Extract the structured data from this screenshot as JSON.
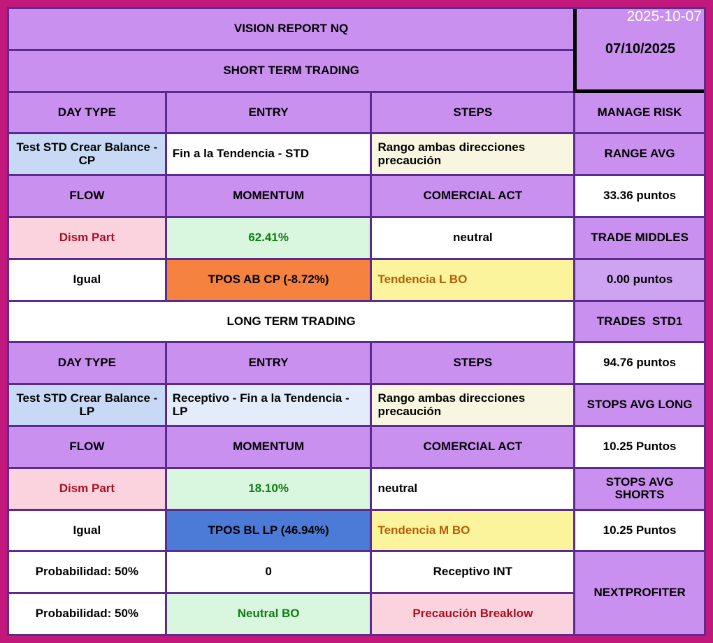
{
  "timestamp_overlay": "2025-10-07",
  "palette": {
    "frame": "#C2187C",
    "grid_line": "#5B2B8F",
    "header_purple": "#CA90F0",
    "value_purple": "#CDA3F2",
    "light_blue": "#C7D9F5",
    "pale_blue": "#E3ECFB",
    "cream": "#F8F6E0",
    "pink": "#FBD3DE",
    "light_green": "#D9F6DF",
    "orange": "#F5823E",
    "yellow": "#FBF49C",
    "blue": "#4B7BD6",
    "white": "#FFFFFF",
    "black": "#000000",
    "dark_red": "#AB0E1E",
    "green": "#0F7D14",
    "brown": "#B35E08"
  },
  "grid": {
    "columns": 4,
    "rows": 15
  },
  "cells": [
    {
      "name": "report-title",
      "text": "VISION REPORT NQ",
      "col": 1,
      "row": 1,
      "colspan": 3,
      "bg": "header_purple"
    },
    {
      "name": "date-cell",
      "text": "07/10/2025",
      "col": 4,
      "row": 1,
      "rowspan": 2,
      "bg": "header_purple",
      "blackEdge": true
    },
    {
      "name": "section-short-term",
      "text": "SHORT TERM TRADING",
      "col": 1,
      "row": 2,
      "colspan": 3,
      "bg": "header_purple"
    },
    {
      "name": "day-type-header-st",
      "text": "DAY TYPE",
      "col": 1,
      "row": 3,
      "bg": "header_purple"
    },
    {
      "name": "entry-header-st",
      "text": "ENTRY",
      "col": 2,
      "row": 3,
      "bg": "header_purple"
    },
    {
      "name": "steps-header-st",
      "text": "STEPS",
      "col": 3,
      "row": 3,
      "bg": "header_purple"
    },
    {
      "name": "manage-risk-header",
      "text": "MANAGE RISK",
      "col": 4,
      "row": 3,
      "bg": "header_purple"
    },
    {
      "name": "day-type-value-st",
      "text": "Test STD Crear Balance - CP",
      "col": 1,
      "row": 4,
      "bg": "light_blue"
    },
    {
      "name": "entry-value-st",
      "text": "Fin a la Tendencia - STD",
      "col": 2,
      "row": 4,
      "bg": "white",
      "align": "left"
    },
    {
      "name": "steps-value-st",
      "text": "Rango ambas direcciones precaución",
      "col": 3,
      "row": 4,
      "bg": "cream",
      "align": "left"
    },
    {
      "name": "range-avg-header",
      "text": "RANGE AVG",
      "col": 4,
      "row": 4,
      "bg": "header_purple"
    },
    {
      "name": "flow-header-st",
      "text": "FLOW",
      "col": 1,
      "row": 5,
      "bg": "header_purple"
    },
    {
      "name": "momentum-header-st",
      "text": "MOMENTUM",
      "col": 2,
      "row": 5,
      "bg": "header_purple"
    },
    {
      "name": "comercial-act-header-st",
      "text": "COMERCIAL ACT",
      "col": 3,
      "row": 5,
      "bg": "header_purple"
    },
    {
      "name": "range-avg-value",
      "text": "33.36 puntos",
      "col": 4,
      "row": 5,
      "bg": "white"
    },
    {
      "name": "flow-value-st",
      "text": "Dism Part",
      "col": 1,
      "row": 6,
      "bg": "pink",
      "fg": "dark_red"
    },
    {
      "name": "momentum-value-st",
      "text": "62.41%",
      "col": 2,
      "row": 6,
      "bg": "light_green",
      "fg": "green"
    },
    {
      "name": "comercial-act-value-st",
      "text": "neutral",
      "col": 3,
      "row": 6,
      "bg": "white"
    },
    {
      "name": "trade-middles-header",
      "text": "TRADE MIDDLES",
      "col": 4,
      "row": 6,
      "bg": "header_purple"
    },
    {
      "name": "flow-state-st",
      "text": "Igual",
      "col": 1,
      "row": 7,
      "bg": "white"
    },
    {
      "name": "tpos-value-st",
      "text": "TPOS AB CP (-8.72%)",
      "col": 2,
      "row": 7,
      "bg": "orange"
    },
    {
      "name": "tendencia-value-st",
      "text": "Tendencia L BO",
      "col": 3,
      "row": 7,
      "bg": "yellow",
      "fg": "brown",
      "align": "left"
    },
    {
      "name": "trade-middles-value",
      "text": "0.00 puntos",
      "col": 4,
      "row": 7,
      "bg": "value_purple"
    },
    {
      "name": "section-long-term",
      "text": "LONG TERM TRADING",
      "col": 1,
      "row": 8,
      "colspan": 3,
      "bg": "white"
    },
    {
      "name": "trades-std1-header",
      "text": "TRADES  STD1",
      "col": 4,
      "row": 8,
      "bg": "header_purple"
    },
    {
      "name": "day-type-header-lt",
      "text": "DAY TYPE",
      "col": 1,
      "row": 9,
      "bg": "header_purple"
    },
    {
      "name": "entry-header-lt",
      "text": "ENTRY",
      "col": 2,
      "row": 9,
      "bg": "header_purple"
    },
    {
      "name": "steps-header-lt",
      "text": "STEPS",
      "col": 3,
      "row": 9,
      "bg": "header_purple"
    },
    {
      "name": "trades-std1-value",
      "text": "94.76 puntos",
      "col": 4,
      "row": 9,
      "bg": "white"
    },
    {
      "name": "day-type-value-lt",
      "text": "Test STD Crear Balance - LP",
      "col": 1,
      "row": 10,
      "bg": "light_blue"
    },
    {
      "name": "entry-value-lt",
      "text": "Receptivo - Fin a la Tendencia - LP",
      "col": 2,
      "row": 10,
      "bg": "pale_blue",
      "align": "left"
    },
    {
      "name": "steps-value-lt",
      "text": "Rango ambas direcciones precaución",
      "col": 3,
      "row": 10,
      "bg": "cream",
      "align": "left"
    },
    {
      "name": "stops-avg-long-header",
      "text": "STOPS AVG LONG",
      "col": 4,
      "row": 10,
      "bg": "header_purple"
    },
    {
      "name": "flow-header-lt",
      "text": "FLOW",
      "col": 1,
      "row": 11,
      "bg": "header_purple"
    },
    {
      "name": "momentum-header-lt",
      "text": "MOMENTUM",
      "col": 2,
      "row": 11,
      "bg": "header_purple"
    },
    {
      "name": "comercial-act-header-lt",
      "text": "COMERCIAL ACT",
      "col": 3,
      "row": 11,
      "bg": "header_purple"
    },
    {
      "name": "stops-avg-long-value",
      "text": "10.25 Puntos",
      "col": 4,
      "row": 11,
      "bg": "white"
    },
    {
      "name": "flow-value-lt",
      "text": "Dism Part",
      "col": 1,
      "row": 12,
      "bg": "pink",
      "fg": "dark_red"
    },
    {
      "name": "momentum-value-lt",
      "text": "18.10%",
      "col": 2,
      "row": 12,
      "bg": "light_green",
      "fg": "green"
    },
    {
      "name": "comercial-act-value-lt",
      "text": "neutral",
      "col": 3,
      "row": 12,
      "bg": "white",
      "align": "left"
    },
    {
      "name": "stops-avg-shorts-header",
      "text": "STOPS AVG SHORTS",
      "col": 4,
      "row": 12,
      "bg": "header_purple"
    },
    {
      "name": "flow-state-lt",
      "text": "Igual",
      "col": 1,
      "row": 13,
      "bg": "white"
    },
    {
      "name": "tpos-value-lt",
      "text": "TPOS BL LP (46.94%)",
      "col": 2,
      "row": 13,
      "bg": "blue"
    },
    {
      "name": "tendencia-value-lt",
      "text": "Tendencia M BO",
      "col": 3,
      "row": 13,
      "bg": "yellow",
      "fg": "brown",
      "align": "left"
    },
    {
      "name": "stops-avg-shorts-value",
      "text": "10.25 Puntos",
      "col": 4,
      "row": 13,
      "bg": "white"
    },
    {
      "name": "probabilidad-row1",
      "text": "Probabilidad: 50%",
      "col": 1,
      "row": 14,
      "bg": "white"
    },
    {
      "name": "momentum-int-value",
      "text": "0",
      "col": 2,
      "row": 14,
      "bg": "white"
    },
    {
      "name": "receptivo-int-value",
      "text": "Receptivo INT",
      "col": 3,
      "row": 14,
      "bg": "white"
    },
    {
      "name": "nextprofiter-brand",
      "text": "NEXTPROFITER",
      "col": 4,
      "row": 14,
      "rowspan": 2,
      "bg": "header_purple"
    },
    {
      "name": "probabilidad-row2",
      "text": "Probabilidad: 50%",
      "col": 1,
      "row": 15,
      "bg": "white"
    },
    {
      "name": "neutral-bo-value",
      "text": "Neutral BO",
      "col": 2,
      "row": 15,
      "bg": "light_green",
      "fg": "green"
    },
    {
      "name": "precaucion-breaklow-value",
      "text": "Precaución Breaklow",
      "col": 3,
      "row": 15,
      "bg": "pink",
      "fg": "dark_red"
    }
  ]
}
